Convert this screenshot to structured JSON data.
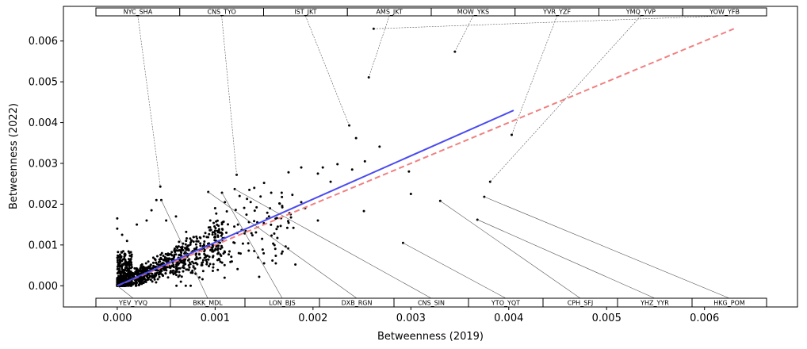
{
  "chart_data": {
    "type": "scatter",
    "title": "",
    "xlabel": "Betweenness (2019)",
    "ylabel": "Betweenness (2022)",
    "xlim": [
      -0.00055,
      0.00695
    ],
    "ylim": [
      -0.00052,
      0.00685
    ],
    "xticks": [
      0.0,
      0.001,
      0.002,
      0.003,
      0.004,
      0.005,
      0.006
    ],
    "xtick_labels": [
      "0.000",
      "0.001",
      "0.002",
      "0.003",
      "0.004",
      "0.005",
      "0.006"
    ],
    "yticks": [
      0.0,
      0.001,
      0.002,
      0.003,
      0.004,
      0.005,
      0.006
    ],
    "ytick_labels": [
      "0.000",
      "0.001",
      "0.002",
      "0.003",
      "0.004",
      "0.005",
      "0.006"
    ],
    "grid": false,
    "colors": {
      "points": "#000000",
      "fit_line": "#4a4af0",
      "reference_line": "#f08080",
      "leader_line": "#555555",
      "label_border": "#000000"
    },
    "fit_line": {
      "style": "solid",
      "x": [
        0.0,
        0.00405
      ],
      "y": [
        0.0,
        0.0043
      ]
    },
    "reference_line": {
      "style": "dashed",
      "x": [
        0.0,
        0.0063
      ],
      "y": [
        0.0,
        0.0063
      ]
    },
    "top_labels": [
      {
        "text": "NYC_SHA",
        "x": 0.00044,
        "y": 0.00243
      },
      {
        "text": "CNS_TYO",
        "x": 0.00122,
        "y": 0.00272
      },
      {
        "text": "IST_JKT",
        "x": 0.00237,
        "y": 0.00393
      },
      {
        "text": "AMS_JKT",
        "x": 0.00257,
        "y": 0.00511
      },
      {
        "text": "MOW_YKS",
        "x": 0.00345,
        "y": 0.00574
      },
      {
        "text": "YVR_YZF",
        "x": 0.00403,
        "y": 0.0037
      },
      {
        "text": "YMQ_YVP",
        "x": 0.00381,
        "y": 0.00255
      },
      {
        "text": "YOW_YFB",
        "x": 0.00262,
        "y": 0.0063
      }
    ],
    "bottom_labels": [
      {
        "text": "YEV_YVQ",
        "x": 0.0,
        "y": 0.0
      },
      {
        "text": "BKK_MDL",
        "x": 0.00045,
        "y": 0.0021
      },
      {
        "text": "LON_BJS",
        "x": 0.00107,
        "y": 0.00228
      },
      {
        "text": "DXB_RGN",
        "x": 0.00093,
        "y": 0.0023
      },
      {
        "text": "CNS_SIN",
        "x": 0.0012,
        "y": 0.00237
      },
      {
        "text": "YTO_YQT",
        "x": 0.00292,
        "y": 0.00105
      },
      {
        "text": "CPH_SFJ",
        "x": 0.0033,
        "y": 0.00208
      },
      {
        "text": "YHZ_YYR",
        "x": 0.00368,
        "y": 0.00162
      },
      {
        "text": "HKG_POM",
        "x": 0.00375,
        "y": 0.00218
      }
    ],
    "highlight_points": [
      [
        0.00244,
        0.00362
      ],
      [
        0.00268,
        0.00341
      ],
      [
        0.00253,
        0.00305
      ],
      [
        0.00225,
        0.00298
      ],
      [
        0.0021,
        0.0029
      ],
      [
        0.00205,
        0.00275
      ],
      [
        0.00188,
        0.0029
      ],
      [
        0.00175,
        0.00278
      ],
      [
        0.0015,
        0.00252
      ],
      [
        0.0014,
        0.0024
      ],
      [
        0.00168,
        0.00228
      ],
      [
        0.00188,
        0.00205
      ],
      [
        0.00192,
        0.0019
      ],
      [
        0.00205,
        0.0016
      ],
      [
        0.0018,
        0.00142
      ],
      [
        0.00164,
        0.00145
      ],
      [
        0.00155,
        0.0017
      ],
      [
        0.00148,
        0.00115
      ],
      [
        0.0014,
        0.00085
      ],
      [
        0.0015,
        0.00055
      ],
      [
        0.00145,
        0.00022
      ],
      [
        0.00182,
        0.00052
      ],
      [
        0.00162,
        0.00055
      ],
      [
        0.00298,
        0.0028
      ],
      [
        0.003,
        0.00225
      ],
      [
        0.00252,
        0.00183
      ],
      [
        0.0024,
        0.00285
      ],
      [
        0.00218,
        0.00255
      ],
      [
        0.00135,
        0.00235
      ],
      [
        0.00125,
        0.0022
      ],
      [
        0.0011,
        0.00205
      ],
      [
        0.001,
        0.0019
      ],
      [
        0.00095,
        0.0016
      ],
      [
        0.00105,
        0.0013
      ],
      [
        0.00085,
        0.00098
      ],
      [
        0.0009,
        0.00075
      ],
      [
        0.00098,
        0.00045
      ],
      [
        0.0008,
        0.0003
      ],
      [
        0.00075,
        0.0
      ],
      [
        0.0007,
        0.0
      ],
      [
        0.00065,
        0.0001
      ],
      [
        0.0004,
        0.0021
      ],
      [
        0.00035,
        0.00185
      ],
      [
        0.0003,
        0.0016
      ],
      [
        0.0002,
        0.0015
      ],
      [
        0.0,
        0.00165
      ],
      [
        0.0,
        0.0014
      ],
      [
        5e-05,
        0.00125
      ],
      [
        0.0001,
        0.0011
      ],
      [
        0.0006,
        0.0017
      ],
      [
        0.0005,
        0.0016
      ]
    ]
  }
}
